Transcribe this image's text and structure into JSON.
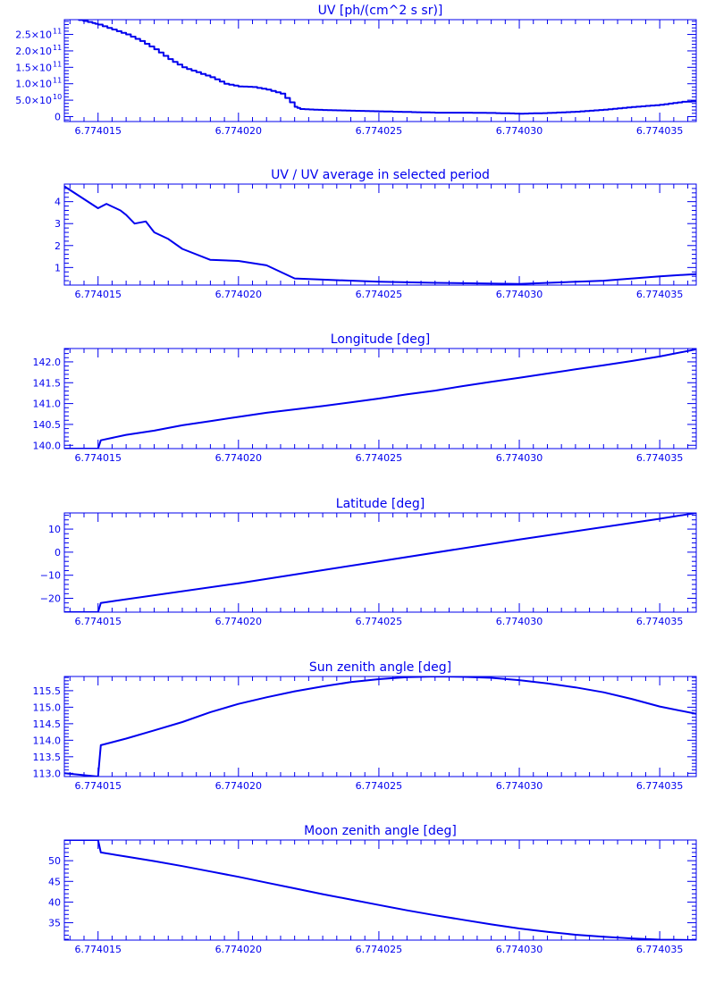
{
  "colors": {
    "background": "#ffffff",
    "foreground": "#0000ee"
  },
  "chart_data": [
    {
      "type": "line",
      "step": true,
      "title": "UV [ph/(cm^2 s sr)]",
      "xlim": [
        6.7740138,
        6.7740363
      ],
      "xticks": [
        "6.774015",
        "6.774020",
        "6.774025",
        "6.774030",
        "6.774035"
      ],
      "xtick_values": [
        6.774015,
        6.77402,
        6.774025,
        6.77403,
        6.774035
      ],
      "ylim": [
        -15000000000.0,
        295000000000.0
      ],
      "yticks": [
        {
          "value": 0,
          "label": "0",
          "exp": ""
        },
        {
          "value": 50000000000.0,
          "label": "5.0×10",
          "exp": "10"
        },
        {
          "value": 100000000000.0,
          "label": "1.0×10",
          "exp": "11"
        },
        {
          "value": 150000000000.0,
          "label": "1.5×10",
          "exp": "11"
        },
        {
          "value": 200000000000.0,
          "label": "2.0×10",
          "exp": "11"
        },
        {
          "value": 250000000000.0,
          "label": "2.5×10",
          "exp": "11"
        }
      ],
      "series": [
        {
          "x": [
            6.774014,
            6.7740148,
            6.774015,
            6.7740155,
            6.774016,
            6.7740165,
            6.774017,
            6.7740175,
            6.774018,
            6.7740185,
            6.774019,
            6.7740195,
            6.77402,
            6.7740205,
            6.774021,
            6.7740215,
            6.774022,
            6.7740222,
            6.774023,
            6.774024,
            6.774025,
            6.774026,
            6.774027,
            6.774028,
            6.774029,
            6.77403,
            6.774031,
            6.774032,
            6.774033,
            6.774034,
            6.774035,
            6.7740358,
            6.7740363
          ],
          "y": [
            300000000000.0,
            285000000000.0,
            280000000000.0,
            265000000000.0,
            250000000000.0,
            230000000000.0,
            205000000000.0,
            175000000000.0,
            150000000000.0,
            135000000000.0,
            120000000000.0,
            100000000000.0,
            92000000000.0,
            90000000000.0,
            82000000000.0,
            70000000000.0,
            30000000000.0,
            23000000000.0,
            20000000000.0,
            18000000000.0,
            16000000000.0,
            14000000000.0,
            12000000000.0,
            12000000000.0,
            11000000000.0,
            9000000000.0,
            11000000000.0,
            15000000000.0,
            21000000000.0,
            29000000000.0,
            36000000000.0,
            45000000000.0,
            47000000000.0
          ]
        }
      ]
    },
    {
      "type": "line",
      "title": "UV / UV average in selected period",
      "xlim": [
        6.7740138,
        6.7740363
      ],
      "xticks": [
        "6.774015",
        "6.774020",
        "6.774025",
        "6.774030",
        "6.774035"
      ],
      "xtick_values": [
        6.774015,
        6.77402,
        6.774025,
        6.77403,
        6.774035
      ],
      "ylim": [
        0.2,
        4.8
      ],
      "yticks": [
        {
          "value": 1,
          "label": "1"
        },
        {
          "value": 2,
          "label": "2"
        },
        {
          "value": 3,
          "label": "3"
        },
        {
          "value": 4,
          "label": "4"
        }
      ],
      "series": [
        {
          "x": [
            6.7740138,
            6.774015,
            6.7740153,
            6.7740158,
            6.774016,
            6.7740163,
            6.7740167,
            6.774017,
            6.7740175,
            6.774018,
            6.774019,
            6.77402,
            6.774021,
            6.774022,
            6.774023,
            6.774025,
            6.774027,
            6.77403,
            6.774033,
            6.774035,
            6.7740363
          ],
          "y": [
            4.7,
            3.7,
            3.9,
            3.6,
            3.4,
            3.0,
            3.1,
            2.6,
            2.3,
            1.85,
            1.35,
            1.3,
            1.1,
            0.5,
            0.45,
            0.35,
            0.3,
            0.25,
            0.4,
            0.6,
            0.7
          ]
        }
      ]
    },
    {
      "type": "line",
      "title": "Longitude [deg]",
      "xlim": [
        6.7740138,
        6.7740363
      ],
      "xticks": [
        "6.774015",
        "6.774020",
        "6.774025",
        "6.774030",
        "6.774035"
      ],
      "xtick_values": [
        6.774015,
        6.77402,
        6.774025,
        6.77403,
        6.774035
      ],
      "ylim": [
        139.92,
        142.32
      ],
      "yticks": [
        {
          "value": 140.0,
          "label": "140.0"
        },
        {
          "value": 140.5,
          "label": "140.5"
        },
        {
          "value": 141.0,
          "label": "141.0"
        },
        {
          "value": 141.5,
          "label": "141.5"
        },
        {
          "value": 142.0,
          "label": "142.0"
        }
      ],
      "series": [
        {
          "x": [
            6.7740138,
            6.774015,
            6.7740151,
            6.774016,
            6.774017,
            6.774018,
            6.774019,
            6.77402,
            6.774021,
            6.774022,
            6.774023,
            6.774024,
            6.774025,
            6.774026,
            6.774027,
            6.774028,
            6.774029,
            6.77403,
            6.774031,
            6.774032,
            6.774033,
            6.774034,
            6.774035,
            6.7740363
          ],
          "y": [
            139.92,
            139.92,
            140.12,
            140.25,
            140.35,
            140.48,
            140.58,
            140.68,
            140.78,
            140.86,
            140.94,
            141.03,
            141.12,
            141.22,
            141.31,
            141.42,
            141.52,
            141.62,
            141.72,
            141.82,
            141.92,
            142.02,
            142.13,
            142.3
          ]
        }
      ]
    },
    {
      "type": "line",
      "title": "Latitude [deg]",
      "xlim": [
        6.7740138,
        6.7740363
      ],
      "xticks": [
        "6.774015",
        "6.774020",
        "6.774025",
        "6.774030",
        "6.774035"
      ],
      "xtick_values": [
        6.774015,
        6.77402,
        6.774025,
        6.77403,
        6.774035
      ],
      "ylim": [
        -26,
        17
      ],
      "yticks": [
        {
          "value": -20,
          "label": "−20"
        },
        {
          "value": -10,
          "label": "−10"
        },
        {
          "value": 0,
          "label": "0"
        },
        {
          "value": 10,
          "label": "10"
        }
      ],
      "series": [
        {
          "x": [
            6.7740138,
            6.774015,
            6.7740151,
            6.77402,
            6.774025,
            6.77403,
            6.774035,
            6.7740363
          ],
          "y": [
            -26,
            -26,
            -22,
            -13.5,
            -4.0,
            5.5,
            14.5,
            17
          ]
        }
      ]
    },
    {
      "type": "line",
      "title": "Sun zenith angle [deg]",
      "xlim": [
        6.7740138,
        6.7740363
      ],
      "xticks": [
        "6.774015",
        "6.774020",
        "6.774025",
        "6.774030",
        "6.774035"
      ],
      "xtick_values": [
        6.774015,
        6.77402,
        6.774025,
        6.77403,
        6.774035
      ],
      "ylim": [
        112.9,
        115.93
      ],
      "yticks": [
        {
          "value": 113.0,
          "label": "113.0"
        },
        {
          "value": 113.5,
          "label": "113.5"
        },
        {
          "value": 114.0,
          "label": "114.0"
        },
        {
          "value": 114.5,
          "label": "114.5"
        },
        {
          "value": 115.0,
          "label": "115.0"
        },
        {
          "value": 115.5,
          "label": "115.5"
        }
      ],
      "series": [
        {
          "x": [
            6.7740138,
            6.774015,
            6.7740151,
            6.774016,
            6.774017,
            6.774018,
            6.774019,
            6.77402,
            6.774021,
            6.774022,
            6.774023,
            6.774024,
            6.774025,
            6.774026,
            6.774027,
            6.774028,
            6.774029,
            6.77403,
            6.774031,
            6.774032,
            6.774033,
            6.774034,
            6.774035,
            6.7740363
          ],
          "y": [
            113.0,
            112.9,
            113.85,
            114.05,
            114.3,
            114.55,
            114.85,
            115.1,
            115.3,
            115.48,
            115.63,
            115.76,
            115.85,
            115.91,
            115.93,
            115.92,
            115.89,
            115.82,
            115.72,
            115.6,
            115.45,
            115.25,
            115.02,
            114.8
          ]
        }
      ]
    },
    {
      "type": "line",
      "title": "Moon zenith angle [deg]",
      "xlim": [
        6.7740138,
        6.7740363
      ],
      "xticks": [
        "6.774015",
        "6.774020",
        "6.774025",
        "6.774030",
        "6.774035"
      ],
      "xtick_values": [
        6.774015,
        6.77402,
        6.774025,
        6.77403,
        6.774035
      ],
      "ylim": [
        30.8,
        55.0
      ],
      "yticks": [
        {
          "value": 35,
          "label": "35"
        },
        {
          "value": 40,
          "label": "40"
        },
        {
          "value": 45,
          "label": "45"
        },
        {
          "value": 50,
          "label": "50"
        }
      ],
      "series": [
        {
          "x": [
            6.7740138,
            6.774015,
            6.7740151,
            6.774016,
            6.774017,
            6.774018,
            6.774019,
            6.77402,
            6.774021,
            6.774022,
            6.774023,
            6.774024,
            6.774025,
            6.774026,
            6.774027,
            6.774028,
            6.774029,
            6.77403,
            6.774031,
            6.774032,
            6.774033,
            6.774034,
            6.774035,
            6.7740363
          ],
          "y": [
            55.0,
            55.0,
            52.0,
            51.0,
            49.9,
            48.7,
            47.4,
            46.1,
            44.7,
            43.3,
            41.9,
            40.6,
            39.3,
            38.0,
            36.8,
            35.7,
            34.6,
            33.6,
            32.8,
            32.1,
            31.6,
            31.2,
            30.9,
            30.8
          ]
        }
      ]
    }
  ]
}
